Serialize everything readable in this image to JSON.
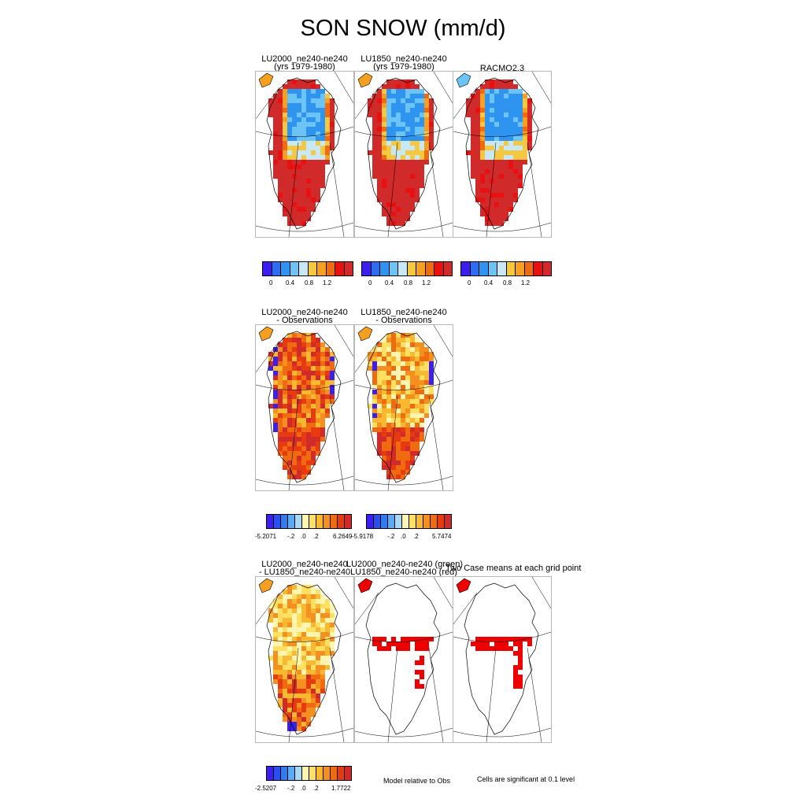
{
  "title": "SON SNOW (mm/d)",
  "row1": {
    "panels": [
      {
        "title1": "LU2000_ne240-ne240",
        "title2": "(yrs 1979-1980)"
      },
      {
        "title1": "LU1850_ne240-ne240",
        "title2": "(yrs 1979-1980)"
      },
      {
        "title1": "RACMO2.3",
        "title2": ""
      }
    ],
    "colorbar_colors": [
      "#3b1ff0",
      "#2f6cf0",
      "#2f93f0",
      "#6cc3f5",
      "#c8e8f5",
      "#f5c842",
      "#f5a020",
      "#f06a10",
      "#e81010",
      "#d02a2a"
    ],
    "ticks": [
      "0",
      "0.4",
      "0.8",
      "1.2"
    ]
  },
  "row2": {
    "panels": [
      {
        "title1": "LU2000_ne240-ne240",
        "title2": "- Observations"
      },
      {
        "title1": "LU1850_ne240-ne240",
        "title2": "- Observations"
      }
    ],
    "colorbar_colors": [
      "#3b1ff0",
      "#2a4ef0",
      "#2f7cf0",
      "#5aaaf5",
      "#a8d8f5",
      "#fff5b0",
      "#ffe060",
      "#f8b830",
      "#f59020",
      "#f06a10",
      "#e83a10",
      "#d02a2a"
    ],
    "cbar1_ticks": [
      "-5.2071",
      "-.2",
      ".0",
      ".2",
      "6.2649"
    ],
    "cbar2_ticks": [
      "-5.9178",
      "-.2",
      ".0",
      ".2",
      "5.7474"
    ]
  },
  "row3": {
    "panel1": {
      "title1": "LU2000_ne240-ne240",
      "title2": "- LU1850_ne240-ne240"
    },
    "panel2": {
      "title1": "LU2000_ne240-ne240 (green)",
      "title2": "LU1850_ne240-ne240 (red)"
    },
    "panel3": {
      "title1": "Two Case means at each grid point"
    },
    "colorbar_colors": [
      "#3b1ff0",
      "#2a4ef0",
      "#2f7cf0",
      "#5aaaf5",
      "#a8d8f5",
      "#fff5b0",
      "#ffe060",
      "#f8b830",
      "#f59020",
      "#f06a10",
      "#e83a10",
      "#d02a2a"
    ],
    "cbar_ticks": [
      "-2.5207",
      "-.2",
      ".0",
      ".2",
      "1.7722"
    ],
    "note1": "Model relative to Obs",
    "note2": "Cells are significant at 0.1 level"
  },
  "chart_data": {
    "type": "heatmap",
    "title": "SON SNOW (mm/d)",
    "variable": "SNOW",
    "season": "SON",
    "units": "mm/d",
    "region": "Greenland",
    "colorbar_ticks_row1": [
      0,
      0.4,
      0.8,
      1.2
    ],
    "diff_colorbar_range_lu2000": [
      -5.2071,
      6.2649
    ],
    "diff_colorbar_range_lu1850": [
      -5.9178,
      5.7474
    ],
    "case_diff_colorbar_range": [
      -2.5207,
      1.7722
    ],
    "significance_level": 0.1
  }
}
